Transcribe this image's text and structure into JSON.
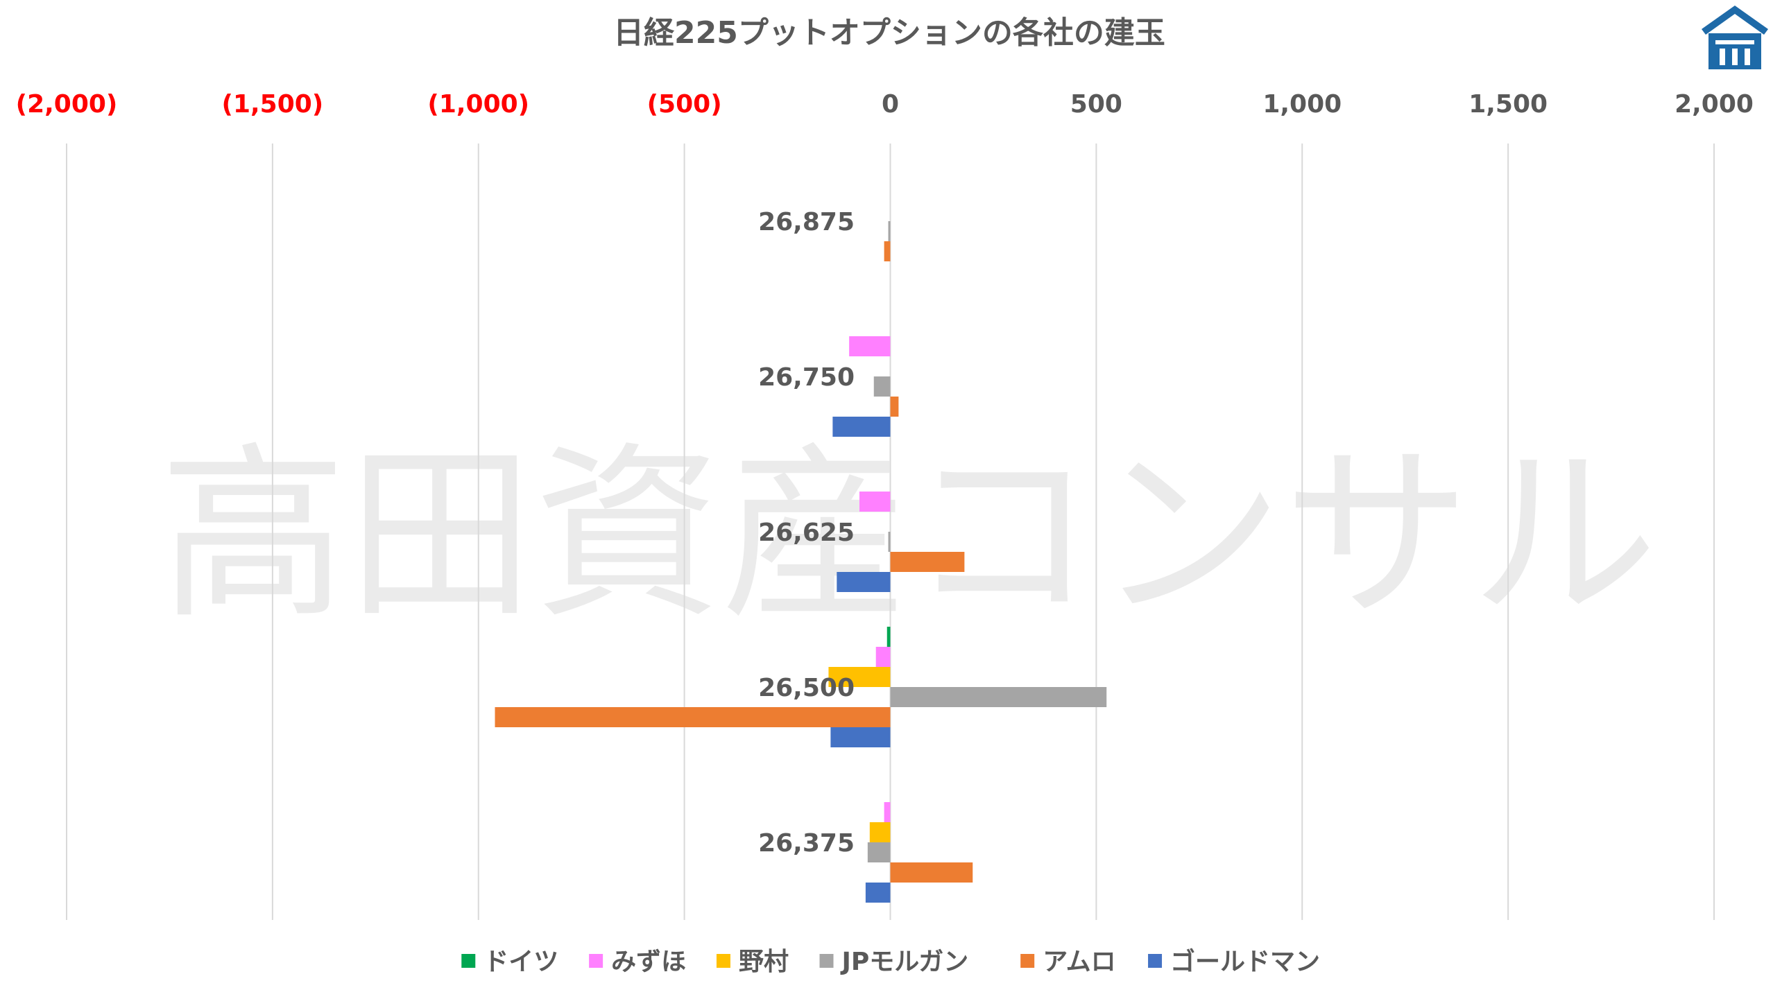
{
  "chart_data": {
    "type": "bar",
    "orientation": "horizontal",
    "title": "日経225プットオプションの各社の建玉",
    "xlim": [
      -2000,
      2000
    ],
    "ticks": [
      {
        "value": -2000,
        "label": "(2,000)"
      },
      {
        "value": -1500,
        "label": "(1,500)"
      },
      {
        "value": -1000,
        "label": "(1,000)"
      },
      {
        "value": -500,
        "label": "(500)"
      },
      {
        "value": 0,
        "label": "0"
      },
      {
        "value": 500,
        "label": "500"
      },
      {
        "value": 1000,
        "label": "1,000"
      },
      {
        "value": 1500,
        "label": "1,500"
      },
      {
        "value": 2000,
        "label": "2,000"
      }
    ],
    "negative_tick_color": "#ff0000",
    "positive_tick_color": "#595959",
    "grid": true,
    "legend_position": "bottom",
    "categories": [
      "26,875",
      "26,750",
      "26,625",
      "26,500",
      "26,375"
    ],
    "series": [
      {
        "name": "ドイツ",
        "color": "#00a651",
        "values": [
          0,
          0,
          0,
          -8,
          0
        ]
      },
      {
        "name": "みずほ",
        "color": "#ff80ff",
        "values": [
          0,
          -100,
          -75,
          -35,
          -15
        ]
      },
      {
        "name": "野村",
        "color": "#ffc000",
        "values": [
          0,
          0,
          0,
          -150,
          -50
        ]
      },
      {
        "name": "JPモルガン",
        "color": "#a5a5a5",
        "values": [
          -5,
          -40,
          -5,
          525,
          -55
        ]
      },
      {
        "name": "アムロ",
        "color": "#ed7d31",
        "values": [
          -15,
          20,
          180,
          -960,
          200
        ]
      },
      {
        "name": "ゴールドマン",
        "color": "#4472c4",
        "values": [
          0,
          -140,
          -130,
          -145,
          -60
        ]
      }
    ]
  },
  "watermark": {
    "text": "高田資産コンサル"
  },
  "logo": {
    "name": "house-logo-icon",
    "color": "#1e6aa8"
  }
}
